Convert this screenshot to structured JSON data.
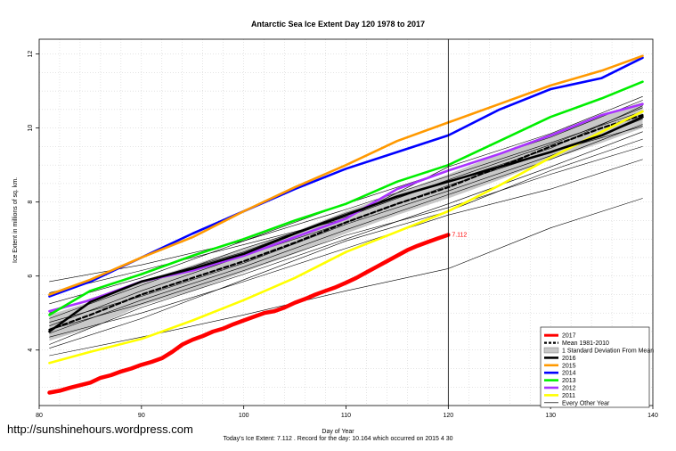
{
  "chart_data": {
    "type": "line",
    "title": "Antarctic Sea Ice Extent Day 120 1978 to 2017",
    "xlabel": "Day of Year",
    "ylabel": "Ice Extent in millions of sq. km.",
    "xlim": [
      80,
      140
    ],
    "ylim": [
      2.5,
      12.4
    ],
    "xticks": [
      80,
      90,
      100,
      110,
      120,
      130,
      140
    ],
    "yticks": [
      4,
      6,
      8,
      10,
      12
    ],
    "vline_x": 120,
    "grid": true,
    "legend_position": "bottom-right",
    "annotation": {
      "text": "7.112",
      "x": 120,
      "y": 7.112
    },
    "band": {
      "name": "1 Standard Deviation From Mean",
      "color": "#c8c8c8",
      "x": [
        81,
        85,
        90,
        95,
        100,
        105,
        110,
        115,
        120,
        125,
        130,
        135,
        139
      ],
      "lower": [
        4.25,
        4.6,
        5.2,
        5.6,
        6.1,
        6.6,
        7.15,
        7.65,
        8.1,
        8.6,
        9.15,
        9.6,
        10.0
      ],
      "upper": [
        4.95,
        5.3,
        5.85,
        6.3,
        6.75,
        7.2,
        7.75,
        8.25,
        8.75,
        9.3,
        9.85,
        10.35,
        10.7
      ]
    },
    "series": [
      {
        "name": "2017",
        "color": "#ff0000",
        "width": 4.5,
        "dash": "",
        "x": [
          81,
          82,
          83,
          84,
          85,
          86,
          87,
          88,
          89,
          90,
          91,
          92,
          93,
          94,
          95,
          96,
          97,
          98,
          99,
          100,
          101,
          102,
          103,
          104,
          105,
          106,
          107,
          108,
          109,
          110,
          111,
          112,
          113,
          114,
          115,
          116,
          117,
          118,
          119,
          120
        ],
        "y": [
          2.85,
          2.9,
          2.98,
          3.05,
          3.12,
          3.25,
          3.32,
          3.42,
          3.5,
          3.6,
          3.68,
          3.78,
          3.95,
          4.15,
          4.28,
          4.38,
          4.5,
          4.58,
          4.7,
          4.8,
          4.9,
          5.0,
          5.05,
          5.15,
          5.28,
          5.38,
          5.5,
          5.6,
          5.7,
          5.82,
          5.95,
          6.1,
          6.25,
          6.4,
          6.55,
          6.7,
          6.82,
          6.92,
          7.02,
          7.112
        ]
      },
      {
        "name": "Mean 1981-2010",
        "color": "#000000",
        "width": 2.2,
        "dash": "5,3",
        "x": [
          81,
          85,
          90,
          95,
          100,
          105,
          110,
          115,
          120,
          125,
          130,
          135,
          139
        ],
        "y": [
          4.55,
          4.95,
          5.5,
          5.95,
          6.4,
          6.9,
          7.45,
          7.95,
          8.4,
          8.95,
          9.5,
          10.0,
          10.35
        ]
      },
      {
        "name": "2016",
        "color": "#000000",
        "width": 2.6,
        "dash": "",
        "x": [
          81,
          85,
          90,
          95,
          100,
          105,
          110,
          115,
          120,
          125,
          130,
          135,
          139
        ],
        "y": [
          4.5,
          5.3,
          5.85,
          6.2,
          6.6,
          7.15,
          7.65,
          8.15,
          8.55,
          8.95,
          9.35,
          9.8,
          10.3
        ]
      },
      {
        "name": "2015",
        "color": "#ff9900",
        "width": 2.6,
        "dash": "",
        "x": [
          81,
          85,
          90,
          95,
          100,
          105,
          110,
          115,
          120,
          125,
          130,
          135,
          139
        ],
        "y": [
          5.5,
          5.9,
          6.5,
          7.05,
          7.75,
          8.4,
          9.0,
          9.65,
          10.15,
          10.65,
          11.15,
          11.55,
          11.95
        ]
      },
      {
        "name": "2014",
        "color": "#0000ff",
        "width": 2.6,
        "dash": "",
        "x": [
          81,
          85,
          90,
          95,
          100,
          105,
          110,
          115,
          120,
          125,
          130,
          135,
          139
        ],
        "y": [
          5.45,
          5.85,
          6.5,
          7.15,
          7.75,
          8.35,
          8.9,
          9.35,
          9.8,
          10.5,
          11.05,
          11.35,
          11.9
        ]
      },
      {
        "name": "2013",
        "color": "#00ee00",
        "width": 2.6,
        "dash": "",
        "x": [
          81,
          85,
          90,
          95,
          100,
          105,
          110,
          115,
          120,
          125,
          130,
          135,
          139
        ],
        "y": [
          4.95,
          5.6,
          6.05,
          6.55,
          7.0,
          7.5,
          7.95,
          8.55,
          9.0,
          9.65,
          10.3,
          10.8,
          11.25
        ]
      },
      {
        "name": "2012",
        "color": "#aa33ff",
        "width": 2.6,
        "dash": "",
        "x": [
          81,
          85,
          90,
          95,
          100,
          105,
          110,
          115,
          120,
          125,
          130,
          135,
          139
        ],
        "y": [
          5.05,
          5.35,
          5.85,
          6.15,
          6.55,
          7.05,
          7.55,
          8.35,
          8.85,
          9.3,
          9.8,
          10.35,
          10.65
        ]
      },
      {
        "name": "2011",
        "color": "#ffff00",
        "width": 2.6,
        "dash": "",
        "x": [
          81,
          85,
          90,
          95,
          100,
          105,
          110,
          115,
          120,
          125,
          130,
          135,
          139
        ],
        "y": [
          3.65,
          3.95,
          4.3,
          4.8,
          5.35,
          5.95,
          6.65,
          7.2,
          7.75,
          8.45,
          9.2,
          9.9,
          10.45
        ]
      },
      {
        "name": "Every Other Year",
        "color": "#000000",
        "width": 0.6,
        "dash": "",
        "x": [
          81,
          90,
          100,
          110,
          120,
          130,
          139
        ],
        "y": [
          5.85,
          6.3,
          6.95,
          7.95,
          8.85,
          9.75,
          10.75
        ]
      },
      {
        "name": "",
        "color": "#000000",
        "width": 0.6,
        "dash": "",
        "x": [
          81,
          90,
          100,
          110,
          120,
          130,
          139
        ],
        "y": [
          3.85,
          4.35,
          4.95,
          5.6,
          6.2,
          7.3,
          8.1
        ]
      },
      {
        "name": "",
        "color": "#000000",
        "width": 0.6,
        "dash": "",
        "x": [
          81,
          90,
          100,
          110,
          120,
          130,
          139
        ],
        "y": [
          4.35,
          5.0,
          5.85,
          6.75,
          7.65,
          8.35,
          9.15
        ]
      },
      {
        "name": "",
        "color": "#000000",
        "width": 0.6,
        "dash": "",
        "x": [
          81,
          90,
          100,
          110,
          120,
          130,
          139
        ],
        "y": [
          4.05,
          4.85,
          5.9,
          6.95,
          7.75,
          8.85,
          9.7
        ]
      },
      {
        "name": "",
        "color": "#000000",
        "width": 0.6,
        "dash": "",
        "x": [
          81,
          90,
          100,
          110,
          120,
          130,
          139
        ],
        "y": [
          4.65,
          5.6,
          6.55,
          7.45,
          8.45,
          9.35,
          10.05
        ]
      },
      {
        "name": "",
        "color": "#000000",
        "width": 0.6,
        "dash": "",
        "x": [
          81,
          90,
          100,
          110,
          120,
          130,
          139
        ],
        "y": [
          5.25,
          5.95,
          6.95,
          7.8,
          8.7,
          9.6,
          10.45
        ]
      },
      {
        "name": "",
        "color": "#000000",
        "width": 0.6,
        "dash": "",
        "x": [
          81,
          90,
          100,
          110,
          120,
          130,
          139
        ],
        "y": [
          4.45,
          5.35,
          6.25,
          7.25,
          8.2,
          9.15,
          10.1
        ]
      },
      {
        "name": "",
        "color": "#000000",
        "width": 0.6,
        "dash": "",
        "x": [
          81,
          90,
          100,
          110,
          120,
          130,
          139
        ],
        "y": [
          4.85,
          5.75,
          6.75,
          7.6,
          8.6,
          9.55,
          10.55
        ]
      },
      {
        "name": "",
        "color": "#000000",
        "width": 0.6,
        "dash": "",
        "x": [
          81,
          90,
          100,
          110,
          120,
          130,
          139
        ],
        "y": [
          4.15,
          5.15,
          6.05,
          7.0,
          7.95,
          8.95,
          9.9
        ]
      },
      {
        "name": "",
        "color": "#000000",
        "width": 0.6,
        "dash": "",
        "x": [
          81,
          90,
          100,
          110,
          120,
          130,
          139
        ],
        "y": [
          5.55,
          6.15,
          6.85,
          7.55,
          8.95,
          9.85,
          10.85
        ]
      },
      {
        "name": "",
        "color": "#000000",
        "width": 0.6,
        "dash": "",
        "x": [
          81,
          90,
          100,
          110,
          120,
          130,
          139
        ],
        "y": [
          4.75,
          5.45,
          6.35,
          7.4,
          8.3,
          9.25,
          10.25
        ]
      },
      {
        "name": "",
        "color": "#000000",
        "width": 0.6,
        "dash": "",
        "x": [
          81,
          90,
          100,
          110,
          120,
          130,
          139
        ],
        "y": [
          4.55,
          5.25,
          6.15,
          7.1,
          7.85,
          8.75,
          9.5
        ]
      },
      {
        "name": "",
        "color": "#000000",
        "width": 0.6,
        "dash": "",
        "x": [
          81,
          90,
          100,
          110,
          120,
          130,
          139
        ],
        "y": [
          5.0,
          5.85,
          6.65,
          7.7,
          8.55,
          9.45,
          10.6
        ]
      }
    ]
  },
  "footer": {
    "website": "http://sunshinehours.wordpress.com",
    "note": "Today's Ice Extent: 7.112 . Record for the day: 10.164 which occurred on 2015 4 30"
  }
}
